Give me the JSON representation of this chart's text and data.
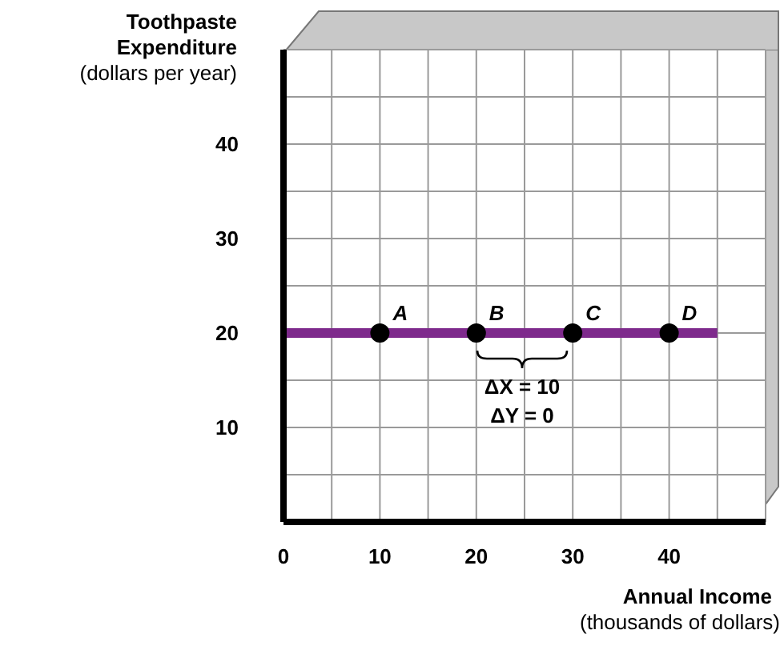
{
  "chart_data": {
    "type": "line",
    "ylabel": "Toothpaste Expenditure",
    "xlabel": "Annual Income",
    "series": [
      {
        "type": "line",
        "color": "#7e2a8c",
        "x": [
          0,
          45
        ],
        "values": [
          20,
          20
        ],
        "marker": "none"
      },
      {
        "type": "scatter",
        "color": "#000000",
        "x": [
          10,
          20,
          30,
          40
        ],
        "values": [
          20,
          20,
          20,
          20
        ],
        "marker": "circle"
      }
    ],
    "xlim": [
      0,
      50
    ],
    "ylim": [
      0,
      50
    ],
    "xticks": [
      0,
      {
        "value": 5,
        "label": null
      },
      10,
      {
        "value": 15,
        "label": null
      },
      20,
      {
        "value": 25,
        "label": null
      },
      30,
      {
        "value": 35,
        "label": null
      },
      40,
      {
        "value": 45,
        "label": null
      },
      {
        "value": 50,
        "label": null
      }
    ],
    "yticks": [
      {
        "value": 0,
        "label": null
      },
      {
        "value": 5,
        "label": null
      },
      10,
      {
        "value": 15,
        "label": null
      },
      20,
      {
        "value": 25,
        "label": null
      },
      30,
      {
        "value": 35,
        "label": null
      },
      40,
      {
        "value": 45,
        "label": null
      },
      {
        "value": 50,
        "label": null
      }
    ],
    "grid": true,
    "annotations": [
      {
        "text": "A",
        "x": 10,
        "y": 20
      },
      {
        "text": "B",
        "x": 20,
        "y": 20
      },
      {
        "text": "C",
        "x": 30,
        "y": 20
      },
      {
        "text": "D",
        "x": 40,
        "y": 20
      },
      "ΔX = 10",
      "ΔY = 0",
      "(dollars per year)",
      "(thousands of dollars)"
    ]
  }
}
